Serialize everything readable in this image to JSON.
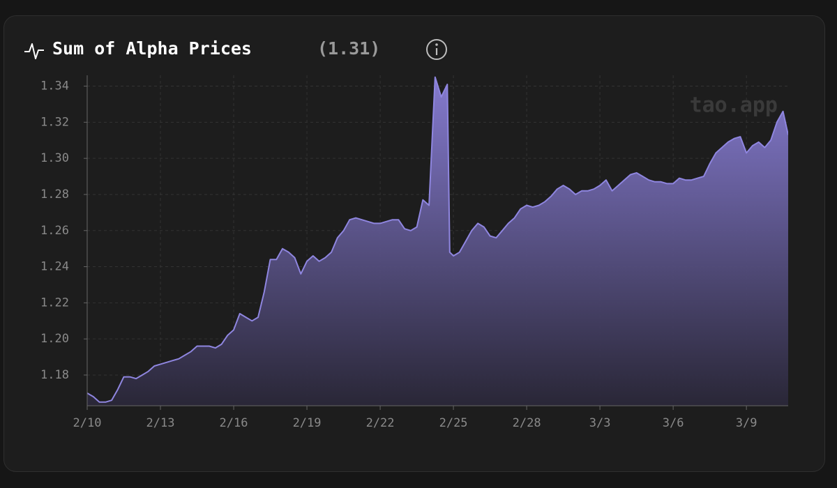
{
  "chart_data": {
    "type": "area",
    "title": "Sum of Alpha Prices",
    "current_value": "(1.31)",
    "watermark": "tao.app",
    "color": "#8f86e0",
    "grid": true,
    "x": [
      0,
      0.25,
      0.5,
      0.75,
      1,
      1.25,
      1.5,
      1.75,
      2,
      2.25,
      2.5,
      2.75,
      3,
      3.25,
      3.5,
      3.75,
      4,
      4.25,
      4.5,
      4.75,
      5,
      5.25,
      5.5,
      5.75,
      6,
      6.25,
      6.5,
      6.75,
      7,
      7.25,
      7.5,
      7.75,
      8,
      8.25,
      8.5,
      8.75,
      9,
      9.25,
      9.5,
      9.75,
      10,
      10.25,
      10.5,
      10.75,
      11,
      11.25,
      11.5,
      11.75,
      12,
      12.25,
      12.5,
      12.75,
      13,
      13.25,
      13.5,
      13.75,
      14,
      14.25,
      14.5,
      14.75,
      14.85,
      15,
      15.25,
      15.5,
      15.75,
      16,
      16.25,
      16.5,
      16.75,
      17,
      17.25,
      17.5,
      17.75,
      18,
      18.25,
      18.5,
      18.75,
      19,
      19.25,
      19.5,
      19.75,
      20,
      20.25,
      20.5,
      20.75,
      21,
      21.25,
      21.5,
      21.75,
      22,
      22.25,
      22.5,
      22.75,
      23,
      23.25,
      23.5,
      23.75,
      24,
      24.25,
      24.5,
      24.75,
      25,
      25.25,
      25.5,
      25.75,
      26,
      26.25,
      26.5,
      26.75,
      27,
      27.25,
      27.5,
      27.75,
      28,
      28.25,
      28.5,
      28.71
    ],
    "values": [
      1.17,
      1.168,
      1.165,
      1.165,
      1.166,
      1.172,
      1.179,
      1.179,
      1.178,
      1.18,
      1.182,
      1.185,
      1.186,
      1.187,
      1.188,
      1.189,
      1.191,
      1.193,
      1.196,
      1.196,
      1.196,
      1.195,
      1.197,
      1.202,
      1.205,
      1.214,
      1.212,
      1.21,
      1.212,
      1.226,
      1.244,
      1.244,
      1.25,
      1.248,
      1.245,
      1.236,
      1.243,
      1.246,
      1.243,
      1.245,
      1.248,
      1.256,
      1.26,
      1.266,
      1.267,
      1.266,
      1.265,
      1.264,
      1.264,
      1.265,
      1.266,
      1.266,
      1.261,
      1.26,
      1.262,
      1.277,
      1.274,
      1.345,
      1.334,
      1.341,
      1.248,
      1.246,
      1.248,
      1.254,
      1.26,
      1.264,
      1.262,
      1.257,
      1.256,
      1.26,
      1.264,
      1.267,
      1.272,
      1.274,
      1.273,
      1.274,
      1.276,
      1.279,
      1.283,
      1.285,
      1.283,
      1.28,
      1.282,
      1.282,
      1.283,
      1.285,
      1.288,
      1.282,
      1.285,
      1.288,
      1.291,
      1.292,
      1.29,
      1.288,
      1.287,
      1.287,
      1.286,
      1.286,
      1.289,
      1.288,
      1.288,
      1.289,
      1.29,
      1.297,
      1.303,
      1.306,
      1.309,
      1.311,
      1.312,
      1.303,
      1.307,
      1.309,
      1.306,
      1.31,
      1.32,
      1.326,
      1.313
    ],
    "xlim": [
      0,
      28.71
    ],
    "xticks": [
      {
        "value": 0,
        "label": "2/10"
      },
      {
        "value": 3,
        "label": "2/13"
      },
      {
        "value": 6,
        "label": "2/16"
      },
      {
        "value": 9,
        "label": "2/19"
      },
      {
        "value": 12,
        "label": "2/22"
      },
      {
        "value": 15,
        "label": "2/25"
      },
      {
        "value": 18,
        "label": "2/28"
      },
      {
        "value": 21,
        "label": "3/3"
      },
      {
        "value": 24,
        "label": "3/6"
      },
      {
        "value": 27,
        "label": "3/9"
      }
    ],
    "ylim": [
      1.163,
      1.346
    ],
    "yticks": [
      1.18,
      {
        "value": 1.2,
        "label": "1.20"
      },
      1.22,
      1.24,
      1.26,
      1.28,
      {
        "value": 1.3,
        "label": "1.30"
      },
      1.32,
      1.34
    ]
  }
}
